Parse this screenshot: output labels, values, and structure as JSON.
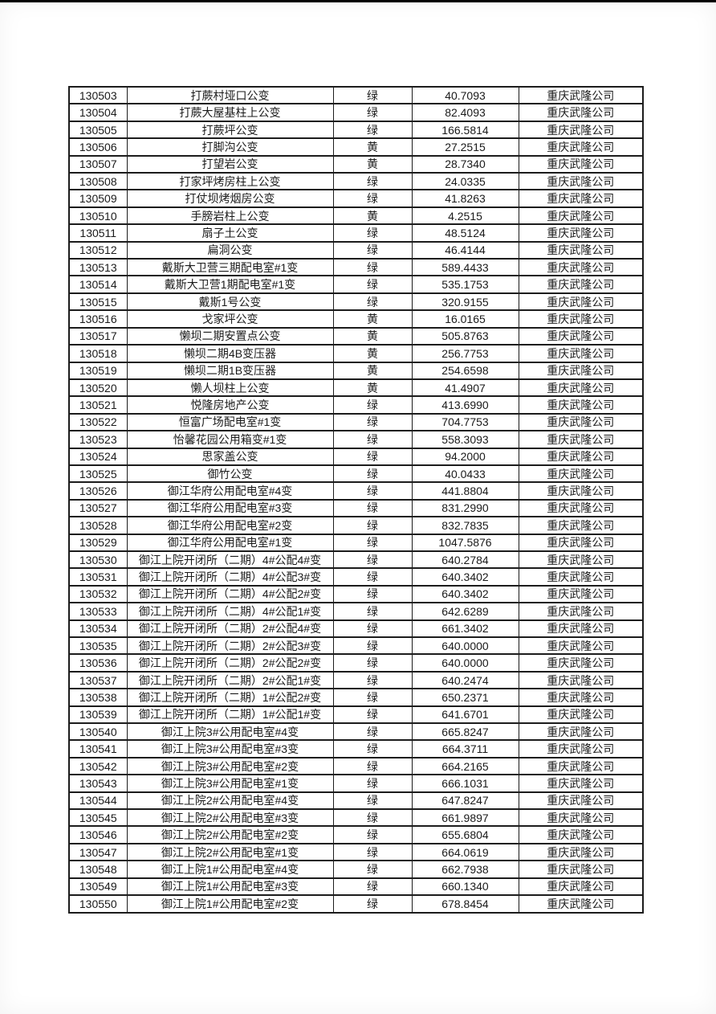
{
  "page": {
    "background_color": "#ffffff",
    "top_edge_color": "#000000",
    "text_color": "#1a1a1a",
    "border_color": "#1c1c1c"
  },
  "table": {
    "rows": [
      [
        "130503",
        "打蕨村垭口公变",
        "绿",
        "40.7093",
        "重庆武隆公司"
      ],
      [
        "130504",
        "打蕨大屋基柱上公变",
        "绿",
        "82.4093",
        "重庆武隆公司"
      ],
      [
        "130505",
        "打蕨坪公变",
        "绿",
        "166.5814",
        "重庆武隆公司"
      ],
      [
        "130506",
        "打脚沟公变",
        "黄",
        "27.2515",
        "重庆武隆公司"
      ],
      [
        "130507",
        "打望岩公变",
        "黄",
        "28.7340",
        "重庆武隆公司"
      ],
      [
        "130508",
        "打家坪烤房柱上公变",
        "绿",
        "24.0335",
        "重庆武隆公司"
      ],
      [
        "130509",
        "打仗坝烤烟房公变",
        "绿",
        "41.8263",
        "重庆武隆公司"
      ],
      [
        "130510",
        "手膀岩柱上公变",
        "黄",
        "4.2515",
        "重庆武隆公司"
      ],
      [
        "130511",
        "扇子土公变",
        "绿",
        "48.5124",
        "重庆武隆公司"
      ],
      [
        "130512",
        "扁洞公变",
        "绿",
        "46.4144",
        "重庆武隆公司"
      ],
      [
        "130513",
        "戴斯大卫营三期配电室#1变",
        "绿",
        "589.4433",
        "重庆武隆公司"
      ],
      [
        "130514",
        "戴斯大卫营1期配电室#1变",
        "绿",
        "535.1753",
        "重庆武隆公司"
      ],
      [
        "130515",
        "戴斯1号公变",
        "绿",
        "320.9155",
        "重庆武隆公司"
      ],
      [
        "130516",
        "戈家坪公变",
        "黄",
        "16.0165",
        "重庆武隆公司"
      ],
      [
        "130517",
        "懒坝二期安置点公变",
        "黄",
        "505.8763",
        "重庆武隆公司"
      ],
      [
        "130518",
        "懒坝二期4B变压器",
        "黄",
        "256.7753",
        "重庆武隆公司"
      ],
      [
        "130519",
        "懒坝二期1B变压器",
        "黄",
        "254.6598",
        "重庆武隆公司"
      ],
      [
        "130520",
        "懒人坝柱上公变",
        "黄",
        "41.4907",
        "重庆武隆公司"
      ],
      [
        "130521",
        "悦隆房地产公变",
        "绿",
        "413.6990",
        "重庆武隆公司"
      ],
      [
        "130522",
        "恒富广场配电室#1变",
        "绿",
        "704.7753",
        "重庆武隆公司"
      ],
      [
        "130523",
        "怡馨花园公用箱变#1变",
        "绿",
        "558.3093",
        "重庆武隆公司"
      ],
      [
        "130524",
        "思家盖公变",
        "绿",
        "94.2000",
        "重庆武隆公司"
      ],
      [
        "130525",
        "御竹公变",
        "绿",
        "40.0433",
        "重庆武隆公司"
      ],
      [
        "130526",
        "御江华府公用配电室#4变",
        "绿",
        "441.8804",
        "重庆武隆公司"
      ],
      [
        "130527",
        "御江华府公用配电室#3变",
        "绿",
        "831.2990",
        "重庆武隆公司"
      ],
      [
        "130528",
        "御江华府公用配电室#2变",
        "绿",
        "832.7835",
        "重庆武隆公司"
      ],
      [
        "130529",
        "御江华府公用配电室#1变",
        "绿",
        "1047.5876",
        "重庆武隆公司"
      ],
      [
        "130530",
        "御江上院开闭所（二期）4#公配4#变",
        "绿",
        "640.2784",
        "重庆武隆公司"
      ],
      [
        "130531",
        "御江上院开闭所（二期）4#公配3#变",
        "绿",
        "640.3402",
        "重庆武隆公司"
      ],
      [
        "130532",
        "御江上院开闭所（二期）4#公配2#变",
        "绿",
        "640.3402",
        "重庆武隆公司"
      ],
      [
        "130533",
        "御江上院开闭所（二期）4#公配1#变",
        "绿",
        "642.6289",
        "重庆武隆公司"
      ],
      [
        "130534",
        "御江上院开闭所（二期）2#公配4#变",
        "绿",
        "661.3402",
        "重庆武隆公司"
      ],
      [
        "130535",
        "御江上院开闭所（二期）2#公配3#变",
        "绿",
        "640.0000",
        "重庆武隆公司"
      ],
      [
        "130536",
        "御江上院开闭所（二期）2#公配2#变",
        "绿",
        "640.0000",
        "重庆武隆公司"
      ],
      [
        "130537",
        "御江上院开闭所（二期）2#公配1#变",
        "绿",
        "640.2474",
        "重庆武隆公司"
      ],
      [
        "130538",
        "御江上院开闭所（二期）1#公配2#变",
        "绿",
        "650.2371",
        "重庆武隆公司"
      ],
      [
        "130539",
        "御江上院开闭所（二期）1#公配1#变",
        "绿",
        "641.6701",
        "重庆武隆公司"
      ],
      [
        "130540",
        "御江上院3#公用配电室#4变",
        "绿",
        "665.8247",
        "重庆武隆公司"
      ],
      [
        "130541",
        "御江上院3#公用配电室#3变",
        "绿",
        "664.3711",
        "重庆武隆公司"
      ],
      [
        "130542",
        "御江上院3#公用配电室#2变",
        "绿",
        "664.2165",
        "重庆武隆公司"
      ],
      [
        "130543",
        "御江上院3#公用配电室#1变",
        "绿",
        "666.1031",
        "重庆武隆公司"
      ],
      [
        "130544",
        "御江上院2#公用配电室#4变",
        "绿",
        "647.8247",
        "重庆武隆公司"
      ],
      [
        "130545",
        "御江上院2#公用配电室#3变",
        "绿",
        "661.9897",
        "重庆武隆公司"
      ],
      [
        "130546",
        "御江上院2#公用配电室#2变",
        "绿",
        "655.6804",
        "重庆武隆公司"
      ],
      [
        "130547",
        "御江上院2#公用配电室#1变",
        "绿",
        "664.0619",
        "重庆武隆公司"
      ],
      [
        "130548",
        "御江上院1#公用配电室#4变",
        "绿",
        "662.7938",
        "重庆武隆公司"
      ],
      [
        "130549",
        "御江上院1#公用配电室#3变",
        "绿",
        "660.1340",
        "重庆武隆公司"
      ],
      [
        "130550",
        "御江上院1#公用配电室#2变",
        "绿",
        "678.8454",
        "重庆武隆公司"
      ]
    ]
  }
}
